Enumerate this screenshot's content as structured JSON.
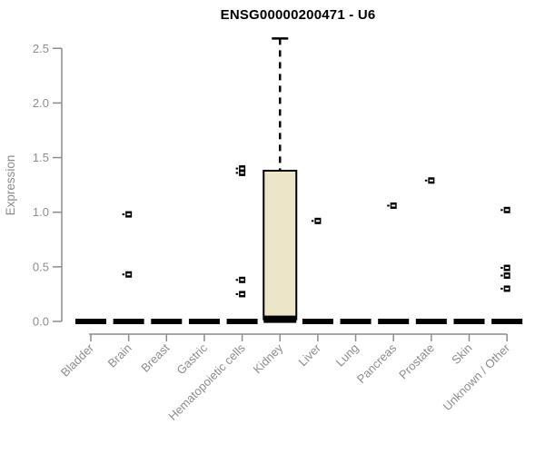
{
  "chart_data": {
    "type": "box",
    "title": "ENSG00000200471 - U6",
    "ylabel": "Expression",
    "xlabel": "",
    "ylim": [
      0,
      2.6
    ],
    "yticks": [
      0.0,
      0.5,
      1.0,
      1.5,
      2.0,
      2.5
    ],
    "grid": false,
    "legend": "none",
    "categories": [
      "Bladder",
      "Brain",
      "Breast",
      "Gastric",
      "Hematopoietic cells",
      "Kidney",
      "Liver",
      "Lung",
      "Pancreas",
      "Prostate",
      "Skin",
      "Unknown / Other"
    ],
    "boxes": [
      {
        "label": "Bladder",
        "median": 0.0,
        "q1": 0.0,
        "q3": 0.0,
        "whisker_low": 0.0,
        "whisker_high": 0.0,
        "points": []
      },
      {
        "label": "Brain",
        "median": 0.0,
        "q1": 0.0,
        "q3": 0.0,
        "whisker_low": 0.0,
        "whisker_high": 0.0,
        "points": [
          0.98,
          0.43
        ]
      },
      {
        "label": "Breast",
        "median": 0.0,
        "q1": 0.0,
        "q3": 0.0,
        "whisker_low": 0.0,
        "whisker_high": 0.0,
        "points": []
      },
      {
        "label": "Gastric",
        "median": 0.0,
        "q1": 0.0,
        "q3": 0.0,
        "whisker_low": 0.0,
        "whisker_high": 0.0,
        "points": []
      },
      {
        "label": "Hematopoietic cells",
        "median": 0.0,
        "q1": 0.0,
        "q3": 0.0,
        "whisker_low": 0.0,
        "whisker_high": 0.0,
        "points": [
          1.4,
          1.36,
          0.38,
          0.25
        ]
      },
      {
        "label": "Kidney",
        "median": 0.02,
        "q1": 0.02,
        "q3": 1.38,
        "whisker_low": 0.0,
        "whisker_high": 2.59,
        "points": []
      },
      {
        "label": "Liver",
        "median": 0.0,
        "q1": 0.0,
        "q3": 0.0,
        "whisker_low": 0.0,
        "whisker_high": 0.0,
        "points": [
          0.92
        ]
      },
      {
        "label": "Lung",
        "median": 0.0,
        "q1": 0.0,
        "q3": 0.0,
        "whisker_low": 0.0,
        "whisker_high": 0.0,
        "points": []
      },
      {
        "label": "Pancreas",
        "median": 0.0,
        "q1": 0.0,
        "q3": 0.0,
        "whisker_low": 0.0,
        "whisker_high": 0.0,
        "points": [
          1.06
        ]
      },
      {
        "label": "Prostate",
        "median": 0.0,
        "q1": 0.0,
        "q3": 0.0,
        "whisker_low": 0.0,
        "whisker_high": 0.0,
        "points": [
          1.29
        ]
      },
      {
        "label": "Skin",
        "median": 0.0,
        "q1": 0.0,
        "q3": 0.0,
        "whisker_low": 0.0,
        "whisker_high": 0.0,
        "points": []
      },
      {
        "label": "Unknown / Other",
        "median": 0.0,
        "q1": 0.0,
        "q3": 0.0,
        "whisker_low": 0.0,
        "whisker_high": 0.0,
        "points": [
          1.02,
          0.49,
          0.42,
          0.3
        ]
      }
    ],
    "colors": {
      "box_fill": "#ece5c8",
      "box_border": "#000000",
      "median": "#000000",
      "point": "#000000",
      "axis": "#8c8c8c",
      "tick_text": "#8c8c8c",
      "title_text": "#000000"
    }
  }
}
